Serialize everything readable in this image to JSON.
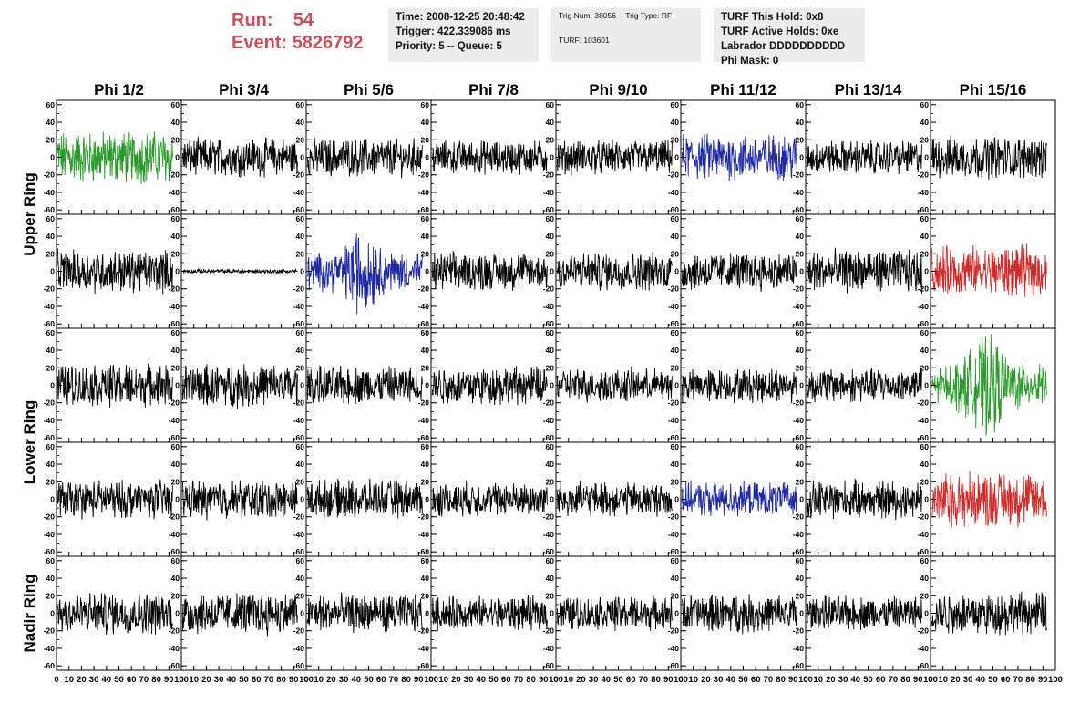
{
  "header": {
    "run_label": "Run:",
    "run_value": "54",
    "event_label": "Event:",
    "event_value": "5826792",
    "time_line": "Time: 2008-12-25 20:48:42",
    "trigger_line": "Trigger: 422.339086 ms",
    "priority_line": "Priority: 5 -- Queue: 5",
    "trig_line": "Trig Num: 38056 -- Trig Type: RF",
    "turf_line": "TURF: 103601",
    "turf_hold_line": "TURF This Hold: 0x8",
    "turf_active_line": "TURF Active Holds: 0xe",
    "labrador_line": "Labrador DDDDDDDDDD",
    "phi_mask_line": "Phi Mask: 0"
  },
  "chart_data": {
    "type": "line",
    "columns": [
      "Phi 1/2",
      "Phi 3/4",
      "Phi 5/6",
      "Phi 7/8",
      "Phi 9/10",
      "Phi 11/12",
      "Phi 13/14",
      "Phi 15/16"
    ],
    "rings": [
      "Upper Ring",
      "Lower Ring",
      "Nadir Ring"
    ],
    "ring_rows": [
      2,
      2,
      1
    ],
    "rows": 5,
    "xlim": [
      0,
      100
    ],
    "ylim": [
      -65,
      65
    ],
    "y_ticks": [
      -60,
      -40,
      -20,
      0,
      20,
      40,
      60
    ],
    "x_ticks": [
      0,
      10,
      20,
      30,
      40,
      50,
      60,
      70,
      80,
      90,
      100
    ],
    "x_tick_labels": [
      "0",
      "10",
      "20",
      "30",
      "40",
      "50",
      "60",
      "70",
      "80",
      "90",
      "100"
    ],
    "trace_color_default": "#000000",
    "trace_colors": [
      [
        "#2a9a2a",
        "#000000",
        "#000000",
        "#000000",
        "#000000",
        "#1f2aa0",
        "#000000",
        "#000000"
      ],
      [
        "#000000",
        "#000000",
        "#1f2aa0",
        "#000000",
        "#000000",
        "#000000",
        "#000000",
        "#d02a2a"
      ],
      [
        "#000000",
        "#000000",
        "#000000",
        "#000000",
        "#000000",
        "#000000",
        "#000000",
        "#2a9a2a"
      ],
      [
        "#000000",
        "#000000",
        "#000000",
        "#000000",
        "#000000",
        "#1f2aa0",
        "#000000",
        "#d02a2a"
      ],
      [
        "#000000",
        "#000000",
        "#000000",
        "#000000",
        "#000000",
        "#000000",
        "#000000",
        "#000000"
      ]
    ],
    "trace_amplitudes": [
      [
        25,
        18,
        18,
        16,
        16,
        22,
        16,
        20
      ],
      [
        20,
        2,
        30,
        18,
        18,
        18,
        20,
        24
      ],
      [
        20,
        20,
        18,
        18,
        16,
        16,
        16,
        35
      ],
      [
        18,
        18,
        18,
        16,
        16,
        16,
        18,
        26
      ],
      [
        20,
        20,
        18,
        16,
        16,
        18,
        16,
        20
      ]
    ]
  }
}
